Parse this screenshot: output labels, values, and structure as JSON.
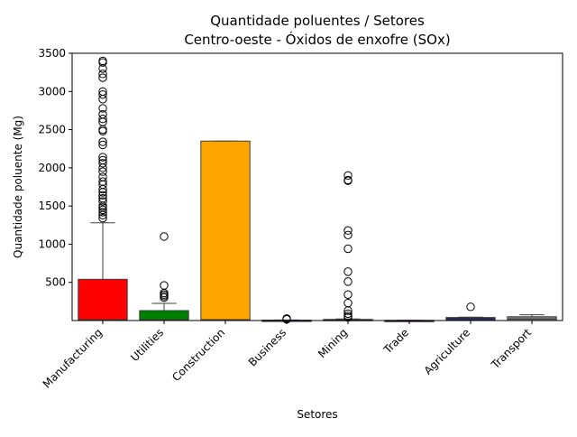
{
  "chart_data": {
    "type": "box",
    "title": "Quantidade poluentes / Setores",
    "subtitle": "Centro-oeste - Óxidos de enxofre (SOx)",
    "xlabel": "Setores",
    "ylabel": "Quantidade poluente (Mg)",
    "ylim": [
      0,
      3500
    ],
    "yticks": [
      500,
      1000,
      1500,
      2000,
      2500,
      3000,
      3500
    ],
    "grid": false,
    "legend": "none",
    "categories": [
      "Manufacturing",
      "Utilities",
      "Construction",
      "Business",
      "Mining",
      "Trade",
      "Agriculture",
      "Transport"
    ],
    "boxes": [
      {
        "category": "Manufacturing",
        "color": "#ff0000",
        "min": 0,
        "q1": 0,
        "median": 10,
        "q3": 540,
        "max": 1280,
        "outliers": [
          1340,
          1380,
          1420,
          1450,
          1480,
          1500,
          1560,
          1600,
          1640,
          1680,
          1720,
          1780,
          1820,
          1880,
          1950,
          2000,
          2060,
          2100,
          2140,
          2300,
          2340,
          2480,
          2500,
          2600,
          2640,
          2700,
          2780,
          2900,
          2960,
          3000,
          3180,
          3230,
          3300,
          3380,
          3400
        ]
      },
      {
        "category": "Utilities",
        "color": "#008000",
        "min": 0,
        "q1": 0,
        "median": 10,
        "q3": 130,
        "max": 225,
        "outliers": [
          300,
          320,
          340,
          360,
          460,
          1100
        ]
      },
      {
        "category": "Construction",
        "color": "#ffa500",
        "min": 0,
        "q1": 0,
        "median": 10,
        "q3": 2350,
        "max": 2350,
        "outliers": []
      },
      {
        "category": "Business",
        "color": "#0000ff",
        "min": 0,
        "q1": 0,
        "median": 0,
        "q3": 5,
        "max": 8,
        "outliers": [
          15,
          25
        ]
      },
      {
        "category": "Mining",
        "color": "#000080",
        "min": 0,
        "q1": 0,
        "median": 5,
        "q3": 15,
        "max": 20,
        "outliers": [
          40,
          60,
          90,
          130,
          230,
          340,
          510,
          640,
          940,
          1120,
          1180,
          1830,
          1840,
          1900
        ]
      },
      {
        "category": "Trade",
        "color": "#4b0082",
        "min": 0,
        "q1": 0,
        "median": 0,
        "q3": 2,
        "max": 3,
        "outliers": []
      },
      {
        "category": "Agriculture",
        "color": "#191970",
        "min": 0,
        "q1": 0,
        "median": 20,
        "q3": 40,
        "max": 45,
        "outliers": [
          180
        ]
      },
      {
        "category": "Transport",
        "color": "#808080",
        "min": 0,
        "q1": 0,
        "median": 20,
        "q3": 50,
        "max": 75,
        "outliers": []
      }
    ]
  }
}
